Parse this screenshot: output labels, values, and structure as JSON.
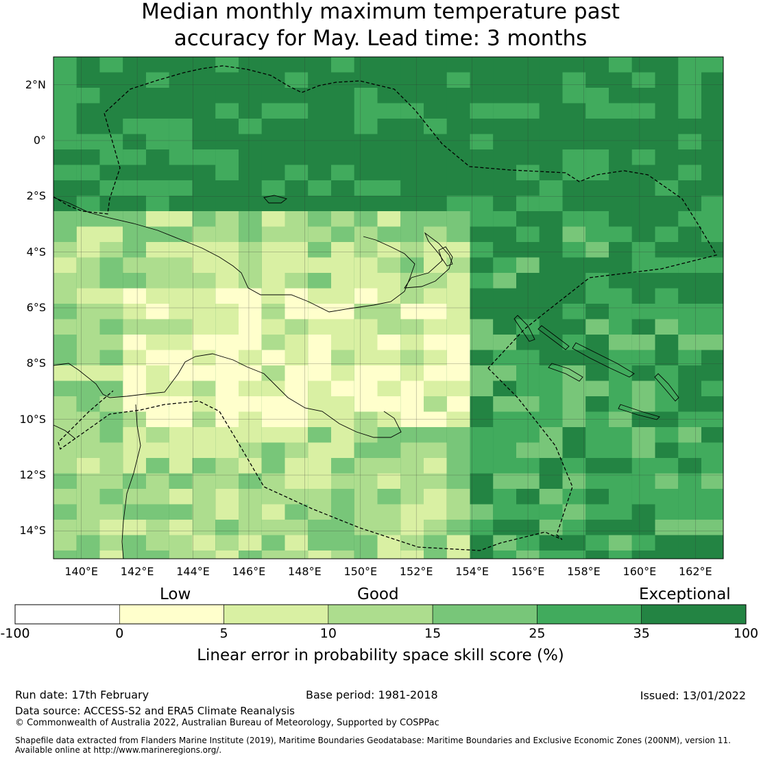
{
  "title": {
    "line1": "Median monthly maximum temperature past",
    "line2": "accuracy for May. Lead time: 3 months"
  },
  "map": {
    "lon_range": [
      139,
      163
    ],
    "lat_range": [
      -15,
      3
    ],
    "background_color": "#248b47",
    "lat_ticks": [
      "2°N",
      "0°",
      "2°S",
      "4°S",
      "6°S",
      "8°S",
      "10°S",
      "12°S",
      "14°S"
    ],
    "lat_values": [
      2,
      0,
      -2,
      -4,
      -6,
      -8,
      -10,
      -12,
      -14
    ],
    "lon_ticks": [
      "140°E",
      "142°E",
      "144°E",
      "146°E",
      "148°E",
      "150°E",
      "152°E",
      "154°E",
      "156°E",
      "158°E",
      "160°E",
      "162°E"
    ],
    "lon_values": [
      140,
      142,
      144,
      146,
      148,
      150,
      152,
      154,
      156,
      158,
      160,
      162
    ]
  },
  "legend": {
    "category_labels": [
      "Low",
      "Good",
      "Exceptional"
    ],
    "tick_labels": [
      "-100",
      "0",
      "5",
      "10",
      "15",
      "25",
      "35",
      "100"
    ],
    "bins": [
      {
        "from": -100,
        "to": 0,
        "color": "#ffffff"
      },
      {
        "from": 0,
        "to": 5,
        "color": "#ffffcc"
      },
      {
        "from": 5,
        "to": 10,
        "color": "#d9f0a3"
      },
      {
        "from": 10,
        "to": 15,
        "color": "#addd8e"
      },
      {
        "from": 15,
        "to": 25,
        "color": "#78c679"
      },
      {
        "from": 25,
        "to": 35,
        "color": "#41ab5d"
      },
      {
        "from": 35,
        "to": 100,
        "color": "#238443"
      }
    ],
    "caption": "Linear error in probability space skill score (%)"
  },
  "footer": {
    "run_date": "Run date: 17th February",
    "base_period": "Base period: 1981-2018",
    "issued": "Issued: 13/01/2022",
    "data_source": "Data source: ACCESS-S2 and ERA5 Climate Reanalysis",
    "copyright": "© Commonwealth of Australia 2022, Australian Bureau of Meteorology, Supported by COSPPac",
    "shapefile_line1": "Shapefile data extracted from Flanders Marine Institute (2019), Maritime Boundaries Geodatabase: Maritime Boundaries and Exclusive Economic Zones (200NM), version 11.",
    "shapefile_line2": "Available online at http://www.marineregions.org/."
  }
}
